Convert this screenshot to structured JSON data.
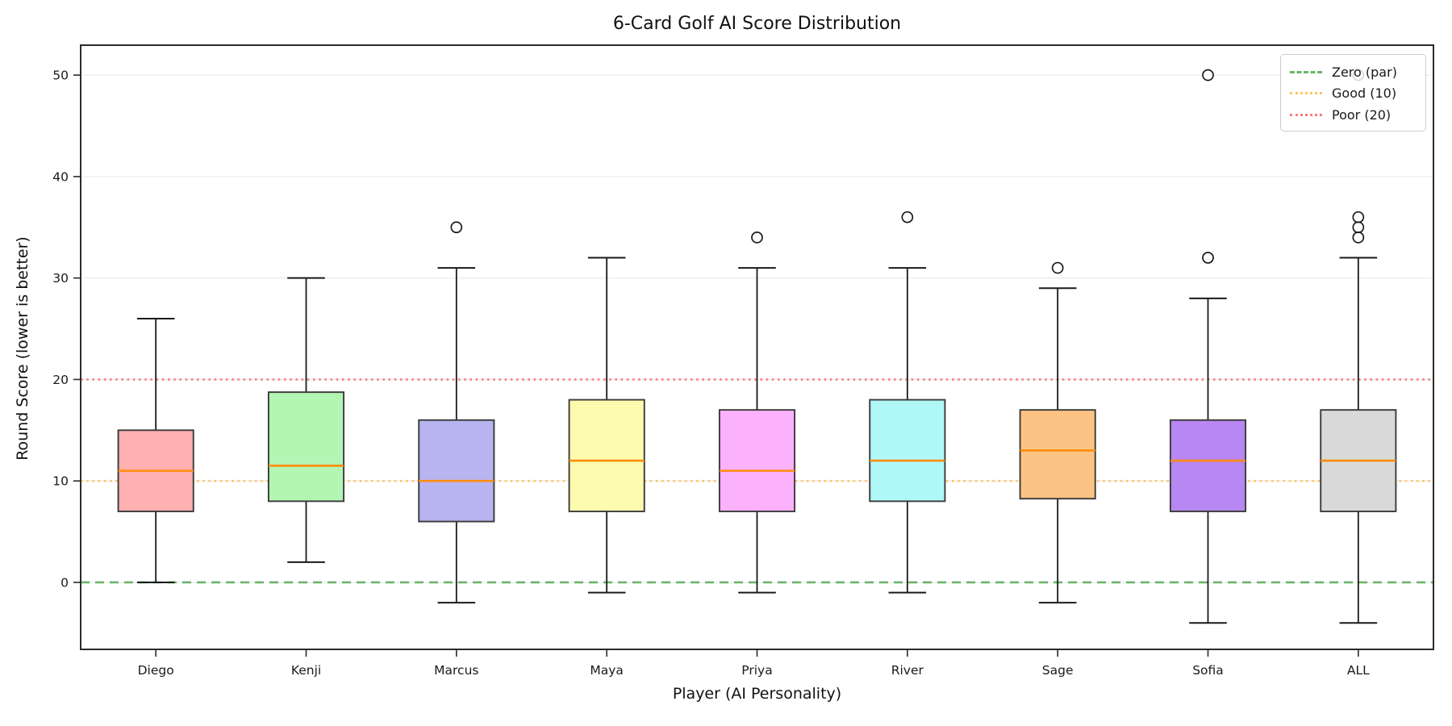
{
  "chart_data": {
    "type": "boxplot",
    "title": "6-Card Golf AI Score Distribution",
    "xlabel": "Player (AI Personality)",
    "ylabel": "Round Score (lower is better)",
    "categories": [
      "Diego",
      "Kenji",
      "Marcus",
      "Maya",
      "Priya",
      "River",
      "Sage",
      "Sofia",
      "ALL"
    ],
    "yticks": [
      0,
      10,
      20,
      30,
      40,
      50
    ],
    "ylim": [
      -6.6,
      52.95
    ],
    "grid": "horizontal",
    "legend_position": "upper-right",
    "box_stats": [
      {
        "player": "Diego",
        "whisker_low": 0,
        "q1": 7,
        "median": 11,
        "q3": 15,
        "whisker_high": 26,
        "outliers": [],
        "color": "#ffb0b0"
      },
      {
        "player": "Kenji",
        "whisker_low": 2,
        "q1": 8,
        "median": 11.5,
        "q3": 18.75,
        "whisker_high": 30,
        "outliers": [],
        "color": "#b3f5b3"
      },
      {
        "player": "Marcus",
        "whisker_low": -2,
        "q1": 6,
        "median": 10,
        "q3": 16,
        "whisker_high": 31,
        "outliers": [
          35
        ],
        "color": "#b8b4f0"
      },
      {
        "player": "Maya",
        "whisker_low": -1,
        "q1": 7,
        "median": 12,
        "q3": 18,
        "whisker_high": 32,
        "outliers": [],
        "color": "#fdfbae"
      },
      {
        "player": "Priya",
        "whisker_low": -1,
        "q1": 7,
        "median": 11,
        "q3": 17,
        "whisker_high": 31,
        "outliers": [
          34
        ],
        "color": "#fcb1fc"
      },
      {
        "player": "River",
        "whisker_low": -1,
        "q1": 8,
        "median": 12,
        "q3": 18,
        "whisker_high": 31,
        "outliers": [
          36
        ],
        "color": "#b0f8f8"
      },
      {
        "player": "Sage",
        "whisker_low": -2,
        "q1": 8.25,
        "median": 13,
        "q3": 17,
        "whisker_high": 29,
        "outliers": [
          31
        ],
        "color": "#fcc384"
      },
      {
        "player": "Sofia",
        "whisker_low": -4,
        "q1": 7,
        "median": 12,
        "q3": 16,
        "whisker_high": 28,
        "outliers": [
          32,
          50
        ],
        "color": "#b787f2"
      },
      {
        "player": "ALL",
        "whisker_low": -4,
        "q1": 7,
        "median": 12,
        "q3": 17,
        "whisker_high": 32,
        "outliers": [
          34,
          35,
          36,
          50
        ],
        "color": "#d9d9d9"
      }
    ],
    "ref_lines": [
      {
        "label": "Zero (par)",
        "value": 0,
        "color": "#6ab56a",
        "style": "dashed"
      },
      {
        "label": "Good (10)",
        "value": 10,
        "color": "#ffc566",
        "style": "dotted"
      },
      {
        "label": "Poor (20)",
        "value": 20,
        "color": "#f87f7f",
        "style": "dotted"
      }
    ],
    "colors": {
      "median": "#ff8c0a",
      "box_edge": "#3a3a3a",
      "whisker": "#1a1a1a",
      "grid": "#ebebeb",
      "spine": "#2b2b2b"
    }
  }
}
